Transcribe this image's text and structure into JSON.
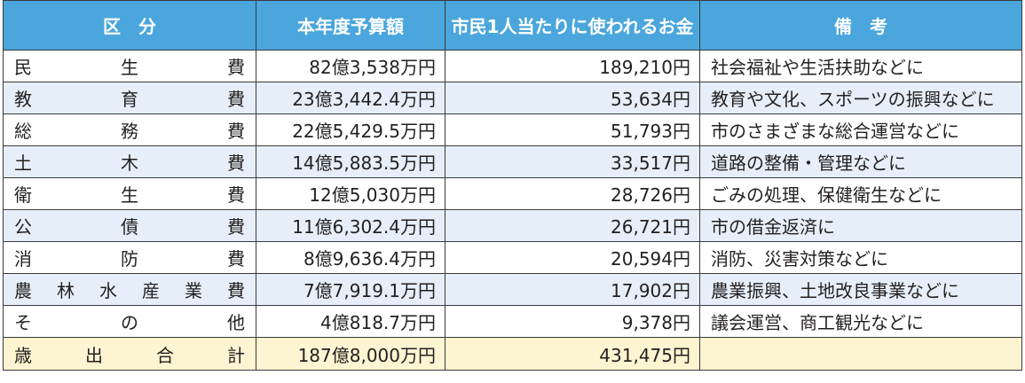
{
  "header": {
    "category": "区　分",
    "budget": "本年度予算額",
    "per_capita": "市民1人当たりに使われるお金",
    "remarks": "備　考"
  },
  "rows": [
    {
      "category": [
        "民",
        "生",
        "費"
      ],
      "budget": "82億3,538万円",
      "per_capita": "189,210円",
      "remarks": "社会福祉や生活扶助などに"
    },
    {
      "category": [
        "教",
        "育",
        "費"
      ],
      "budget": "23億3,442.4万円",
      "per_capita": "53,634円",
      "remarks": "教育や文化、スポーツの振興などに"
    },
    {
      "category": [
        "総",
        "務",
        "費"
      ],
      "budget": "22億5,429.5万円",
      "per_capita": "51,793円",
      "remarks": "市のさまざまな総合運営などに"
    },
    {
      "category": [
        "土",
        "木",
        "費"
      ],
      "budget": "14億5,883.5万円",
      "per_capita": "33,517円",
      "remarks": "道路の整備・管理などに"
    },
    {
      "category": [
        "衛",
        "生",
        "費"
      ],
      "budget": "12億5,030万円",
      "per_capita": "28,726円",
      "remarks": "ごみの処理、保健衛生などに"
    },
    {
      "category": [
        "公",
        "債",
        "費"
      ],
      "budget": "11億6,302.4万円",
      "per_capita": "26,721円",
      "remarks": "市の借金返済に"
    },
    {
      "category": [
        "消",
        "防",
        "費"
      ],
      "budget": "8億9,636.4万円",
      "per_capita": "20,594円",
      "remarks": "消防、災害対策などに"
    },
    {
      "category": [
        "農",
        "林",
        "水",
        "産",
        "業",
        "費"
      ],
      "budget": "7億7,919.1万円",
      "per_capita": "17,902円",
      "remarks": "農業振興、土地改良事業などに"
    },
    {
      "category": [
        "そ",
        "の",
        "他"
      ],
      "budget": "4億818.7万円",
      "per_capita": "9,378円",
      "remarks": "議会運営、商工観光などに"
    }
  ],
  "total": {
    "category": [
      "歳",
      "出",
      "合",
      "計"
    ],
    "budget": "187億8,000万円",
    "per_capita": "431,475円",
    "remarks": ""
  },
  "colors": {
    "header_bg": "#4aa6dc",
    "alt_row_bg": "#e6eff9",
    "total_row_bg": "#fdf4d1"
  }
}
